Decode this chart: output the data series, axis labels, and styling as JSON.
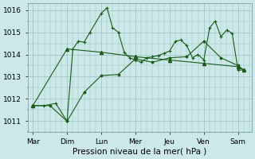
{
  "xlabel": "Pression niveau de la mer( hPa )",
  "bg_color": "#cce8e8",
  "grid_color": "#9bbfbf",
  "line_color": "#1a5c1a",
  "xtick_labels": [
    "Mar",
    "Dim",
    "Lun",
    "Mer",
    "Jeu",
    "Ven",
    "Sam"
  ],
  "ylim": [
    1010.5,
    1016.3
  ],
  "yticks": [
    1011,
    1012,
    1013,
    1014,
    1015,
    1016
  ],
  "line1_x": [
    0,
    0.33,
    0.67,
    1.0,
    1.17,
    1.33,
    1.5,
    1.67,
    2.0,
    2.17,
    2.33,
    2.5,
    2.67,
    2.83,
    3.0,
    3.17,
    3.33,
    3.5,
    3.67,
    3.83,
    4.0,
    4.17,
    4.33,
    4.5,
    4.67,
    4.83,
    5.0,
    5.17,
    5.33,
    5.5,
    5.67,
    5.83,
    6.0,
    6.17
  ],
  "line1_y": [
    1011.7,
    1011.7,
    1011.8,
    1011.0,
    1014.25,
    1014.6,
    1014.55,
    1015.0,
    1015.85,
    1016.1,
    1015.2,
    1015.0,
    1014.1,
    1013.85,
    1013.75,
    1013.65,
    1013.85,
    1013.9,
    1013.95,
    1014.05,
    1014.15,
    1014.6,
    1014.65,
    1014.4,
    1013.85,
    1014.0,
    1013.75,
    1015.2,
    1015.5,
    1014.8,
    1015.1,
    1014.95,
    1013.3,
    1013.3
  ],
  "line2_x": [
    0,
    0.5,
    1.0,
    1.5,
    2.0,
    2.5,
    3.0,
    3.5,
    4.0,
    4.5,
    5.0,
    5.5,
    6.0,
    6.17
  ],
  "line2_y": [
    1011.7,
    1011.7,
    1011.0,
    1012.3,
    1013.05,
    1013.1,
    1013.8,
    1013.65,
    1013.85,
    1013.9,
    1014.6,
    1013.85,
    1013.5,
    1013.3
  ],
  "line3_x": [
    0,
    1.0,
    2.0,
    3.0,
    4.0,
    5.0,
    6.0,
    6.17
  ],
  "line3_y": [
    1011.7,
    1014.25,
    1014.1,
    1013.9,
    1013.75,
    1013.6,
    1013.45,
    1013.3
  ]
}
